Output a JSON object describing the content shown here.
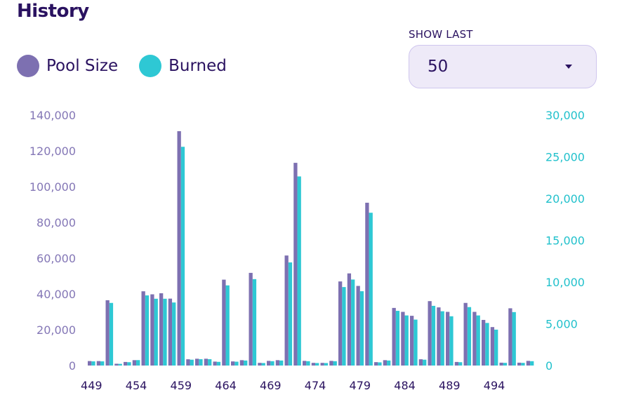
{
  "header": {
    "title": "History"
  },
  "legend": [
    {
      "label": "Pool Size",
      "color": "#7d70b1"
    },
    {
      "label": "Burned",
      "color": "#2ec8d4"
    }
  ],
  "show_last": {
    "label": "SHOW LAST",
    "value": "50"
  },
  "colors": {
    "left_axis": "#8477b6",
    "right_axis": "#22c1cc",
    "x_axis": "#2a1260"
  },
  "chart_data": {
    "type": "bar",
    "xlabel": "",
    "ylabel_left": "Pool Size",
    "ylabel_right": "Burned",
    "ylim_left": [
      0,
      140000
    ],
    "ylim_right": [
      0,
      30000
    ],
    "yticks_left": [
      "0",
      "20,000",
      "40,000",
      "60,000",
      "80,000",
      "100,000",
      "120,000",
      "140,000"
    ],
    "yticks_right": [
      "0",
      "5,000",
      "10,000",
      "15,000",
      "20,000",
      "25,000",
      "30,000"
    ],
    "xticks": [
      "449",
      "454",
      "459",
      "464",
      "469",
      "474",
      "479",
      "484",
      "489",
      "494"
    ],
    "categories": [
      449,
      450,
      451,
      452,
      453,
      454,
      455,
      456,
      457,
      458,
      459,
      460,
      461,
      462,
      463,
      464,
      465,
      466,
      467,
      468,
      469,
      470,
      471,
      472,
      473,
      474,
      475,
      476,
      477,
      478,
      479,
      480,
      481,
      482,
      483,
      484,
      485,
      486,
      487,
      488,
      489,
      490,
      491,
      492,
      493,
      494,
      495,
      496,
      497,
      498
    ],
    "series": [
      {
        "name": "Pool Size",
        "axis": "left",
        "values": [
          2500,
          2500,
          36500,
          1000,
          2000,
          3000,
          41500,
          39800,
          40400,
          37400,
          131000,
          3500,
          3800,
          3800,
          2200,
          48000,
          2300,
          3000,
          51800,
          1500,
          2600,
          3000,
          61500,
          113300,
          2600,
          1500,
          1500,
          2600,
          47000,
          51500,
          44500,
          91000,
          1900,
          3000,
          32200,
          30000,
          27800,
          3500,
          36000,
          32500,
          30000,
          2000,
          35000,
          30000,
          25500,
          21500,
          1600,
          32000,
          1600,
          2600
        ]
      },
      {
        "name": "Burned",
        "axis": "right",
        "values": [
          500,
          500,
          7500,
          200,
          400,
          650,
          8400,
          8000,
          8000,
          7550,
          26200,
          700,
          760,
          760,
          440,
          9600,
          460,
          600,
          10350,
          300,
          520,
          600,
          12350,
          22650,
          520,
          300,
          300,
          520,
          9400,
          10300,
          8900,
          18300,
          380,
          600,
          6550,
          6000,
          5500,
          700,
          7150,
          6500,
          5900,
          400,
          7000,
          6000,
          5100,
          4300,
          320,
          6400,
          320,
          520
        ]
      }
    ]
  }
}
